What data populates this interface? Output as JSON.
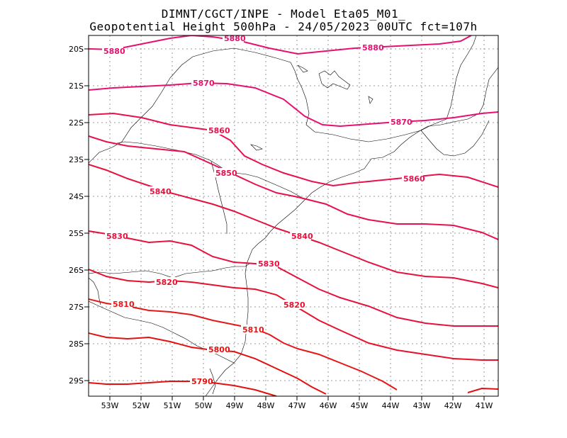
{
  "title": {
    "line1": "DIMNT/CGCT/INPE -  Model Eta05_M01_",
    "line2": "Geopotential Height 500hPa -  24/05/2023 00UTC fct=107h"
  },
  "axes": {
    "lat_labels": [
      "20S",
      "21S",
      "22S",
      "23S",
      "24S",
      "25S",
      "26S",
      "27S",
      "28S",
      "29S"
    ],
    "lon_labels": [
      "53W",
      "52W",
      "51W",
      "50W",
      "49W",
      "48W",
      "47W",
      "46W",
      "45W",
      "44W",
      "43W",
      "42W",
      "41W"
    ]
  },
  "colors": {
    "high": "#e8106e",
    "mid": "#e8103c",
    "low": "#e41010",
    "border": "#000000",
    "grid": "#9a9a9a"
  },
  "contours": [
    {
      "label": "5880",
      "color": "#e8106e"
    },
    {
      "label": "5870",
      "color": "#e8106e"
    },
    {
      "label": "5860",
      "color": "#e8104e"
    },
    {
      "label": "5850",
      "color": "#e8104e"
    },
    {
      "label": "5840",
      "color": "#e8103c"
    },
    {
      "label": "5830",
      "color": "#e8103c"
    },
    {
      "label": "5820",
      "color": "#e8102a"
    },
    {
      "label": "5810",
      "color": "#e41818"
    },
    {
      "label": "5800",
      "color": "#e41010"
    },
    {
      "label": "5790",
      "color": "#e41010"
    }
  ]
}
